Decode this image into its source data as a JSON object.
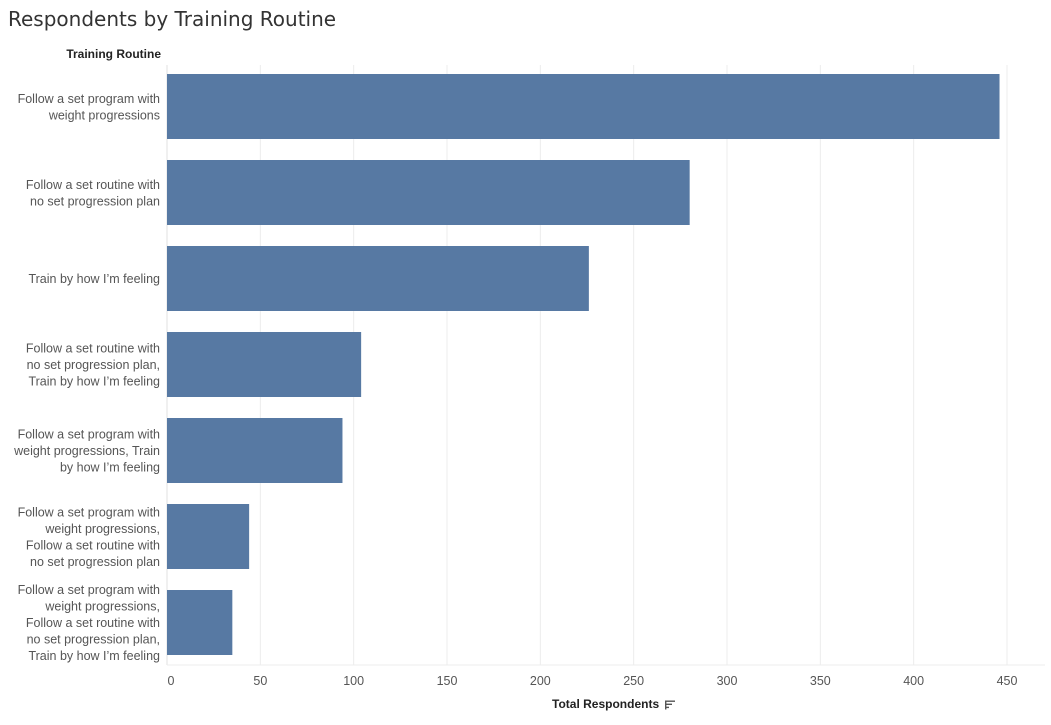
{
  "chart_data": {
    "type": "bar",
    "orientation": "horizontal",
    "title": "Respondents by Training Routine",
    "row_header": "Training Routine",
    "xlabel": "Total Respondents",
    "xlim": [
      0,
      450
    ],
    "xticks": [
      0,
      50,
      100,
      150,
      200,
      250,
      300,
      350,
      400,
      450
    ],
    "grid": true,
    "sort_icon": "sort-descending-icon",
    "bar_color": "#5779a3",
    "categories": [
      [
        "Follow a set program with",
        "weight progressions"
      ],
      [
        "Follow a set routine with",
        "no set progression plan"
      ],
      [
        "Train by how I’m feeling"
      ],
      [
        "Follow a set routine with",
        "no set progression plan,",
        "Train by how I’m feeling"
      ],
      [
        "Follow a set program with",
        "weight progressions, Train",
        "by how I’m feeling"
      ],
      [
        "Follow a set program with",
        "weight progressions,",
        "Follow a set routine with",
        "no set progression plan"
      ],
      [
        "Follow a set program with",
        "weight progressions,",
        "Follow a set routine with",
        "no set progression plan,",
        "Train by how I’m feeling"
      ]
    ],
    "values": [
      446,
      280,
      226,
      104,
      94,
      44,
      35
    ]
  }
}
